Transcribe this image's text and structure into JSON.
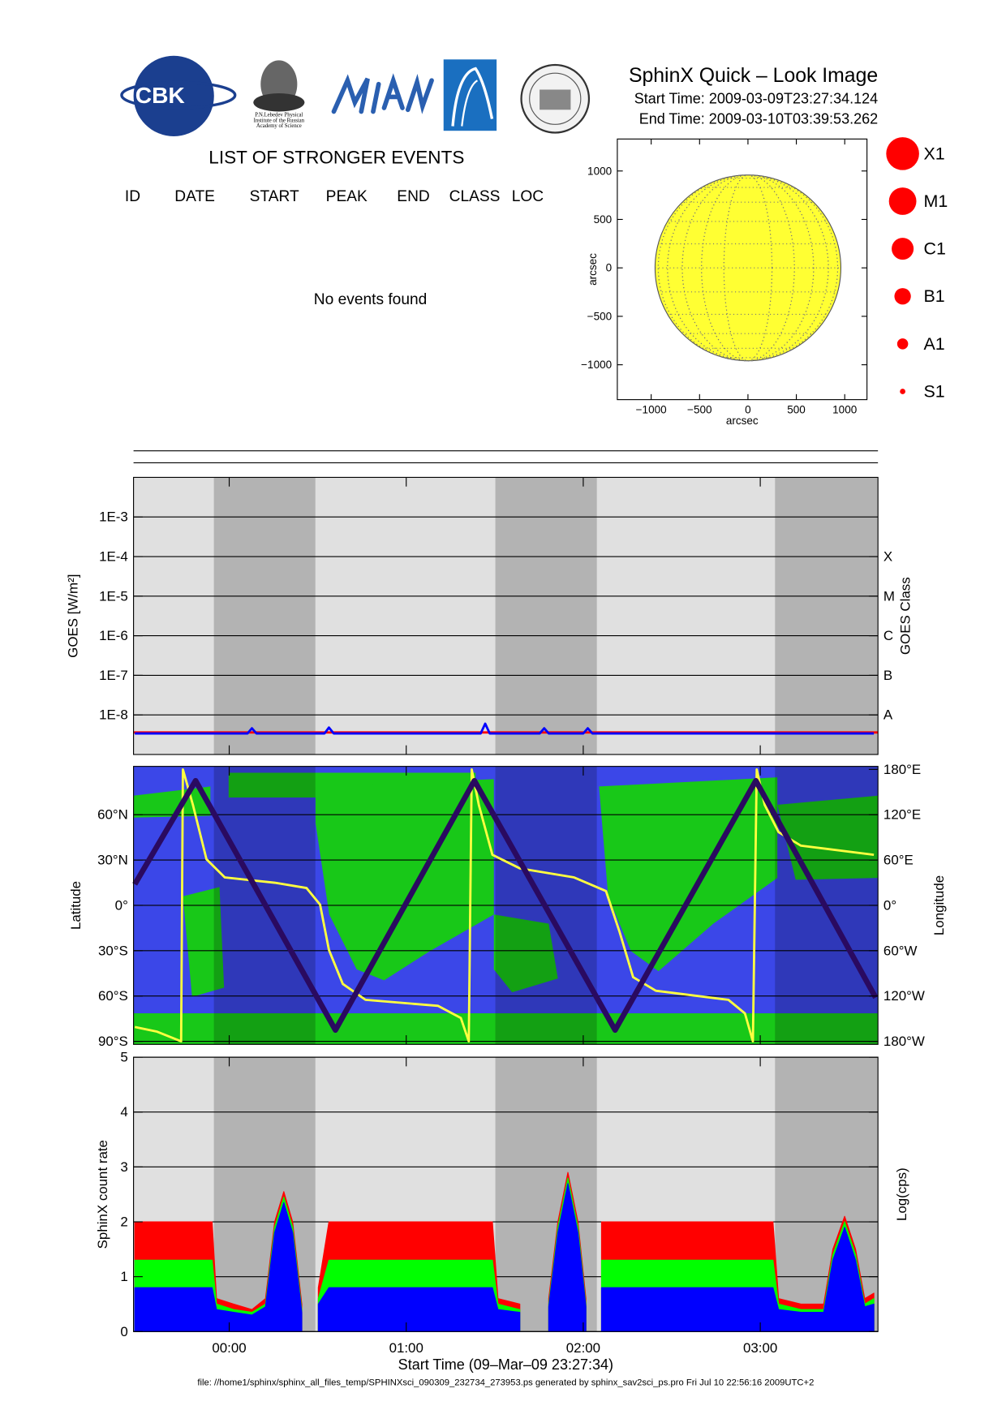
{
  "header": {
    "title": "SphinX Quick – Look Image",
    "start_time": "Start Time: 2009-03-09T23:27:34.124",
    "end_time": "End Time: 2009-03-10T03:39:53.262"
  },
  "logos": {
    "cbk": "CBK",
    "lebedev": [
      "P.N.Lebedev Physical",
      "Institute of the Russian",
      "Academy of Science"
    ]
  },
  "events": {
    "title": "LIST OF STRONGER EVENTS",
    "columns": [
      "ID",
      "DATE",
      "START",
      "PEAK",
      "END",
      "CLASS",
      "LOC"
    ],
    "message": "No events found"
  },
  "flare_classes": [
    "X1",
    "M1",
    "C1",
    "B1",
    "A1",
    "S1"
  ],
  "eclipse_shading": {
    "intervals": [
      [
        "2009-03-09T23:54:48",
        "2009-03-10T00:29:12"
      ],
      [
        "2009-03-10T01:30:12",
        "2009-03-10T02:04:36"
      ],
      [
        "2009-03-10T03:05:00",
        "2009-03-10T03:39:53.262"
      ]
    ],
    "color": "#000000",
    "opacity": 0.2
  },
  "chart_data": [
    {
      "type": "disk",
      "radius": 960,
      "color": "#ffff33",
      "disk_grid": true,
      "xlim": [
        -1350,
        1230
      ],
      "ylim": [
        -1360,
        1330
      ],
      "xticks": [
        {
          "value": -1000,
          "label": "−1000"
        },
        {
          "value": -500,
          "label": "−500"
        },
        0,
        500,
        1000
      ],
      "yticks": [
        {
          "value": -1000,
          "label": "−1000"
        },
        {
          "value": -500,
          "label": "−500"
        },
        0,
        500,
        1000
      ],
      "xlabel": "arcsec",
      "ylabel": "arcsec"
    },
    {
      "type": "line",
      "ylabel": "GOES [W/m²]",
      "y2label": "GOES Class",
      "background": "#e0e0e0",
      "grid": true,
      "xlim": [
        "2009-03-09T23:27:34.124",
        "2009-03-10T03:39:53.262"
      ],
      "xticks": [
        "2009-03-10T00:00:00",
        "2009-03-10T01:00:00",
        "2009-03-10T02:00:00",
        "2009-03-10T03:00:00"
      ],
      "ylog": true,
      "ylim": [
        1e-09,
        0.01
      ],
      "yticks": [
        {
          "value": 0.001,
          "label": "1E-3"
        },
        {
          "value": 0.0001,
          "label": "1E-4"
        },
        {
          "value": 1e-05,
          "label": "1E-5"
        },
        {
          "value": 1e-06,
          "label": "1E-6"
        },
        {
          "value": 1e-07,
          "label": "1E-7"
        },
        {
          "value": 1e-08,
          "label": "1E-8"
        }
      ],
      "y2log": true,
      "y2lim": [
        1e-09,
        0.01
      ],
      "y2ticks": [
        {
          "value": 1e-08,
          "label": "A"
        },
        {
          "value": 1e-07,
          "label": "B"
        },
        {
          "value": 1e-06,
          "label": "C"
        },
        {
          "value": 1e-05,
          "label": "M"
        },
        {
          "value": 0.0001,
          "label": "X"
        }
      ],
      "series": [
        {
          "color": "#ff0000",
          "x": [
            "2009-03-09T23:27:34.124",
            "2009-03-10T03:39:53.262"
          ],
          "values": [
            3.6e-09,
            3.6e-09
          ]
        },
        {
          "color": "#0000ff",
          "x": [
            "2009-03-09T23:28:00",
            "2009-03-10T00:06:12",
            "2009-03-10T00:07:42",
            "2009-03-10T00:09:14",
            "2009-03-10T00:32:18",
            "2009-03-10T00:33:48",
            "2009-03-10T00:35:24",
            "2009-03-10T01:25:14",
            "2009-03-10T01:26:46",
            "2009-03-10T01:28:18",
            "2009-03-10T01:45:14",
            "2009-03-10T01:46:46",
            "2009-03-10T01:48:18",
            "2009-03-10T02:00:00",
            "2009-03-10T02:01:32",
            "2009-03-10T02:03:06",
            "2009-03-10T03:38:30"
          ],
          "values": [
            3.4e-09,
            3.4e-09,
            4.6e-09,
            3.4e-09,
            3.4e-09,
            4.8e-09,
            3.4e-09,
            3.4e-09,
            6e-09,
            3.4e-09,
            3.4e-09,
            4.6e-09,
            3.4e-09,
            3.4e-09,
            4.6e-09,
            3.4e-09,
            3.4e-09
          ]
        }
      ]
    },
    {
      "type": "line",
      "ylabel": "Latitude",
      "y2label": "Longitude",
      "background": "#3b47e8",
      "grid": true,
      "xlim": [
        "2009-03-09T23:27:34.124",
        "2009-03-10T03:39:53.262"
      ],
      "xticks": [
        "2009-03-10T00:00:00",
        "2009-03-10T01:00:00",
        "2009-03-10T02:00:00",
        "2009-03-10T03:00:00"
      ],
      "ylim": [
        -92,
        92
      ],
      "yticks": [
        {
          "value": -90,
          "label": "90°S"
        },
        {
          "value": -60,
          "label": "60°S"
        },
        {
          "value": -30,
          "label": "30°S"
        },
        {
          "value": 0,
          "label": "0°"
        },
        {
          "value": 30,
          "label": "30°N"
        },
        {
          "value": 60,
          "label": "60°N"
        }
      ],
      "y2lim": [
        -184,
        184
      ],
      "y2ticks": [
        {
          "value": -180,
          "label": "180°W"
        },
        {
          "value": -120,
          "label": "120°W"
        },
        {
          "value": -60,
          "label": "60°W"
        },
        {
          "value": 0,
          "label": "0°"
        },
        {
          "value": 60,
          "label": "60°E"
        },
        {
          "value": 120,
          "label": "120°E"
        },
        {
          "value": 180,
          "label": "180°E"
        }
      ],
      "series": [
        {
          "color": "#ffff40",
          "axis": "y2",
          "x": [
            "2009-03-09T23:28:00",
            "2009-03-09T23:35:24",
            "2009-03-09T23:43:42",
            "2009-03-09T23:44:18",
            "2009-03-09T23:47:42",
            "2009-03-09T23:52:18",
            "2009-03-09T23:58:30",
            "2009-03-10T00:15:24",
            "2009-03-10T00:26:12",
            "2009-03-10T00:30:48",
            "2009-03-10T00:33:48",
            "2009-03-10T00:38:30",
            "2009-03-10T00:46:12",
            "2009-03-10T01:10:48",
            "2009-03-10T01:18:30",
            "2009-03-10T01:21:12",
            "2009-03-10T01:22:12",
            "2009-03-10T01:24:36",
            "2009-03-10T01:29:12",
            "2009-03-10T01:38:30",
            "2009-03-10T01:56:54",
            "2009-03-10T02:07:42",
            "2009-03-10T02:12:18",
            "2009-03-10T02:16:54",
            "2009-03-10T02:24:36",
            "2009-03-10T02:49:12",
            "2009-03-10T02:54:48",
            "2009-03-10T02:57:30",
            "2009-03-10T02:58:48",
            "2009-03-10T03:01:30",
            "2009-03-10T03:06:12",
            "2009-03-10T03:13:48",
            "2009-03-10T03:38:30"
          ],
          "values": [
            -161,
            -167,
            -180,
            180,
            133,
            61,
            37,
            30,
            23,
            1,
            -59,
            -104,
            -125,
            -133,
            -149,
            -180,
            180,
            133,
            67,
            49,
            37,
            19,
            -35,
            -95,
            -113,
            -125,
            -143,
            -180,
            180,
            133,
            97,
            79,
            67
          ]
        },
        {
          "color": "#2a0a60",
          "x": [
            "2009-03-09T23:28:00",
            "2009-03-09T23:48:36",
            "2009-03-10T00:36:00",
            "2009-03-10T01:23:06",
            "2009-03-10T02:10:48",
            "2009-03-10T02:58:30",
            "2009-03-10T03:39:06"
          ],
          "values": [
            14,
            82.5,
            -82.5,
            82.5,
            -82.5,
            82.5,
            -61
          ]
        }
      ]
    },
    {
      "type": "area",
      "ylabel": "SphinX count rate",
      "y2label": "Log(cps)",
      "xlabel": "Start Time (09–Mar–09 23:27:34)",
      "background": "#e0e0e0",
      "grid": true,
      "xlim": [
        "2009-03-09T23:27:34.124",
        "2009-03-10T03:39:53.262"
      ],
      "xticks": [
        {
          "value": "2009-03-10T00:00:00",
          "label": "00:00"
        },
        {
          "value": "2009-03-10T01:00:00",
          "label": "01:00"
        },
        {
          "value": "2009-03-10T02:00:00",
          "label": "02:00"
        },
        {
          "value": "2009-03-10T03:00:00",
          "label": "03:00"
        }
      ],
      "ylim": [
        0,
        5
      ],
      "yticks": [
        0,
        1,
        2,
        3,
        4,
        5
      ],
      "x": [
        "2009-03-09T23:28:00",
        "2009-03-09T23:33:48",
        "2009-03-09T23:41:30",
        "2009-03-09T23:49:12",
        "2009-03-09T23:54:12",
        "2009-03-09T23:55:42",
        "2009-03-10T00:01:30",
        "2009-03-10T00:07:42",
        "2009-03-10T00:12:18",
        "2009-03-10T00:15:24",
        "2009-03-10T00:18:30",
        "2009-03-10T00:21:30",
        "2009-03-10T00:24:36",
        "2009-03-10T00:27:06",
        "2009-03-10T00:30:12",
        "2009-03-10T00:33:48",
        "2009-03-10T00:46:12",
        "2009-03-10T01:01:30",
        "2009-03-10T01:16:54",
        "2009-03-10T01:29:12",
        "2009-03-10T01:31:06",
        "2009-03-10T01:38:30",
        "2009-03-10T01:45:12",
        "2009-03-10T01:48:18",
        "2009-03-10T01:51:24",
        "2009-03-10T01:54:48",
        "2009-03-10T01:58:12",
        "2009-03-10T02:00:54",
        "2009-03-10T02:03:06",
        "2009-03-10T02:06:12",
        "2009-03-10T02:18:30",
        "2009-03-10T02:33:48",
        "2009-03-10T02:49:12",
        "2009-03-10T03:04:18",
        "2009-03-10T03:06:12",
        "2009-03-10T03:13:48",
        "2009-03-10T03:21:30",
        "2009-03-10T03:24:36",
        "2009-03-10T03:28:36",
        "2009-03-10T03:32:18",
        "2009-03-10T03:35:24",
        "2009-03-10T03:38:30"
      ],
      "series": [
        {
          "color": "#ff0000",
          "values": [
            2.0,
            2.0,
            2.0,
            2.0,
            2.0,
            0.6,
            0.5,
            0.4,
            0.6,
            2.0,
            2.55,
            2.0,
            0.5,
            null,
            0.8,
            2.0,
            2.0,
            2.0,
            2.0,
            2.0,
            0.6,
            0.5,
            null,
            0.6,
            2.0,
            2.9,
            2.0,
            0.6,
            null,
            2.0,
            2.0,
            2.0,
            2.0,
            2.0,
            0.6,
            0.5,
            0.5,
            1.5,
            2.1,
            1.5,
            0.6,
            0.7
          ]
        },
        {
          "color": "#00ff00",
          "values": [
            1.3,
            1.3,
            1.3,
            1.3,
            1.3,
            0.5,
            0.4,
            0.35,
            0.5,
            1.9,
            2.45,
            1.9,
            0.4,
            null,
            0.6,
            1.3,
            1.3,
            1.3,
            1.3,
            1.3,
            0.5,
            0.4,
            null,
            0.5,
            1.9,
            2.8,
            1.9,
            0.5,
            null,
            1.3,
            1.3,
            1.3,
            1.3,
            1.3,
            0.5,
            0.4,
            0.4,
            1.4,
            2.0,
            1.4,
            0.5,
            0.6
          ]
        },
        {
          "color": "#0000ff",
          "values": [
            0.8,
            0.8,
            0.8,
            0.8,
            0.8,
            0.4,
            0.35,
            0.3,
            0.45,
            1.8,
            2.35,
            1.8,
            0.35,
            null,
            0.5,
            0.8,
            0.8,
            0.8,
            0.8,
            0.8,
            0.4,
            0.35,
            null,
            0.45,
            1.8,
            2.7,
            1.8,
            0.45,
            null,
            0.8,
            0.8,
            0.8,
            0.8,
            0.8,
            0.4,
            0.35,
            0.35,
            1.3,
            1.9,
            1.3,
            0.45,
            0.5
          ]
        }
      ]
    }
  ],
  "footer": "file: //home1/sphinx/sphinx_all_files_temp/SPHINXsci_090309_232734_273953.ps generated by sphinx_sav2sci_ps.pro Fri Jul 10 22:56:16 2009UTC+2"
}
